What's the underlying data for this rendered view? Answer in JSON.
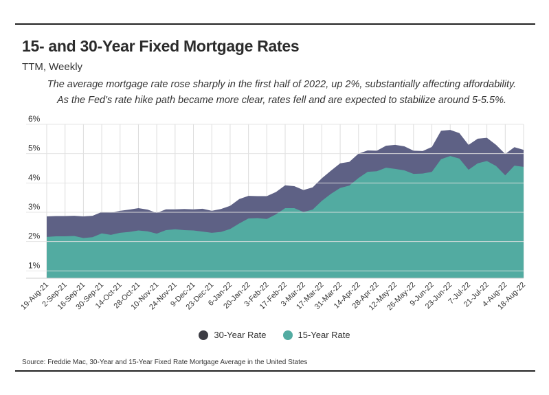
{
  "chart_data": {
    "type": "area",
    "title": "15- and 30-Year Fixed Mortgage Rates",
    "subtitle": "TTM, Weekly",
    "description": "The average mortgage rate rose sharply in the first half of 2022, up 2%, substantially affecting affordability. As the Fed's rate hike path became more clear, rates fell and are expected to stabilize around 5-5.5%.",
    "source": "Source:  Freddie Mac, 30-Year  and 15-Year Fixed Rate Mortgage Average in the United States",
    "ylim": [
      0.75,
      6
    ],
    "yticks": [
      1,
      2,
      3,
      4,
      5,
      6
    ],
    "ytick_labels": [
      "1%",
      "2%",
      "3%",
      "4%",
      "5%",
      "6%"
    ],
    "x": [
      "19-Aug-21",
      "26-Aug-21",
      "2-Sep-21",
      "9-Sep-21",
      "16-Sep-21",
      "23-Sep-21",
      "30-Sep-21",
      "7-Oct-21",
      "14-Oct-21",
      "21-Oct-21",
      "28-Oct-21",
      "4-Nov-21",
      "10-Nov-21",
      "18-Nov-21",
      "24-Nov-21",
      "2-Dec-21",
      "9-Dec-21",
      "16-Dec-21",
      "23-Dec-21",
      "30-Dec-21",
      "6-Jan-22",
      "13-Jan-22",
      "20-Jan-22",
      "27-Jan-22",
      "3-Feb-22",
      "10-Feb-22",
      "17-Feb-22",
      "24-Feb-22",
      "3-Mar-22",
      "10-Mar-22",
      "17-Mar-22",
      "24-Mar-22",
      "31-Mar-22",
      "7-Apr-22",
      "14-Apr-22",
      "21-Apr-22",
      "28-Apr-22",
      "5-May-22",
      "12-May-22",
      "19-May-22",
      "26-May-22",
      "2-Jun-22",
      "9-Jun-22",
      "16-Jun-22",
      "23-Jun-22",
      "30-Jun-22",
      "7-Jul-22",
      "14-Jul-22",
      "21-Jul-22",
      "28-Jul-22",
      "4-Aug-22",
      "11-Aug-22",
      "18-Aug-22"
    ],
    "xtick_labels": [
      "19-Aug-21",
      "2-Sep-21",
      "16-Sep-21",
      "30-Sep-21",
      "14-Oct-21",
      "28-Oct-21",
      "10-Nov-21",
      "24-Nov-21",
      "9-Dec-21",
      "23-Dec-21",
      "6-Jan-22",
      "20-Jan-22",
      "3-Feb-22",
      "17-Feb-22",
      "3-Mar-22",
      "17-Mar-22",
      "31-Mar-22",
      "14-Apr-22",
      "28-Apr-22",
      "12-May-22",
      "26-May-22",
      "9-Jun-22",
      "23-Jun-22",
      "7-Jul-22",
      "21-Jul-22",
      "4-Aug-22",
      "18-Aug-22"
    ],
    "series": [
      {
        "name": "30-Year Rate",
        "color": "#5e6185",
        "values": [
          2.86,
          2.87,
          2.87,
          2.88,
          2.86,
          2.88,
          3.01,
          2.99,
          3.05,
          3.09,
          3.14,
          3.09,
          2.98,
          3.1,
          3.1,
          3.11,
          3.1,
          3.12,
          3.05,
          3.11,
          3.22,
          3.45,
          3.56,
          3.55,
          3.55,
          3.69,
          3.92,
          3.89,
          3.76,
          3.85,
          4.16,
          4.42,
          4.67,
          4.72,
          5.0,
          5.11,
          5.1,
          5.27,
          5.3,
          5.25,
          5.1,
          5.09,
          5.23,
          5.78,
          5.81,
          5.7,
          5.3,
          5.51,
          5.54,
          5.3,
          4.99,
          5.22,
          5.13
        ]
      },
      {
        "name": "15-Year Rate",
        "color": "#52aba1",
        "values": [
          2.16,
          2.18,
          2.18,
          2.19,
          2.12,
          2.15,
          2.28,
          2.23,
          2.3,
          2.33,
          2.38,
          2.35,
          2.27,
          2.39,
          2.42,
          2.39,
          2.38,
          2.34,
          2.3,
          2.33,
          2.43,
          2.62,
          2.79,
          2.8,
          2.77,
          2.93,
          3.14,
          3.14,
          3.01,
          3.09,
          3.39,
          3.63,
          3.83,
          3.91,
          4.17,
          4.38,
          4.4,
          4.52,
          4.48,
          4.43,
          4.31,
          4.32,
          4.38,
          4.81,
          4.92,
          4.83,
          4.45,
          4.67,
          4.75,
          4.58,
          4.26,
          4.59,
          4.55
        ]
      }
    ]
  },
  "legend": {
    "items": [
      {
        "label": "30-Year Rate",
        "color": "#3d3d44"
      },
      {
        "label": "15-Year Rate",
        "color": "#52aba1"
      }
    ]
  }
}
